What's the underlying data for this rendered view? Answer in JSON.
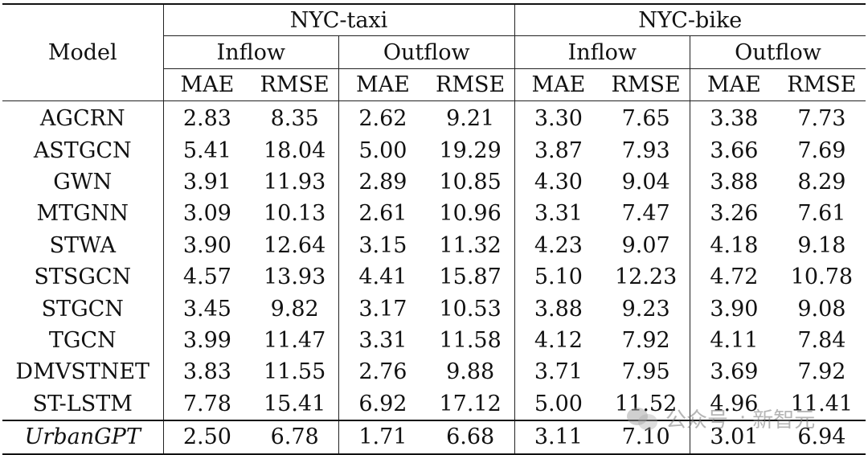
{
  "table": {
    "model_header": "Model",
    "datasets": [
      {
        "name": "NYC-taxi",
        "groups": [
          "Inflow",
          "Outflow"
        ]
      },
      {
        "name": "NYC-bike",
        "groups": [
          "Inflow",
          "Outflow"
        ]
      }
    ],
    "metrics": [
      "MAE",
      "RMSE",
      "MAE",
      "RMSE",
      "MAE",
      "RMSE",
      "MAE",
      "RMSE"
    ],
    "rows": [
      {
        "model": "AGCRN",
        "values": [
          "2.83",
          "8.35",
          "2.62",
          "9.21",
          "3.30",
          "7.65",
          "3.38",
          "7.73"
        ]
      },
      {
        "model": "ASTGCN",
        "values": [
          "5.41",
          "18.04",
          "5.00",
          "19.29",
          "3.87",
          "7.93",
          "3.66",
          "7.69"
        ]
      },
      {
        "model": "GWN",
        "values": [
          "3.91",
          "11.93",
          "2.89",
          "10.85",
          "4.30",
          "9.04",
          "3.88",
          "8.29"
        ]
      },
      {
        "model": "MTGNN",
        "values": [
          "3.09",
          "10.13",
          "2.61",
          "10.96",
          "3.31",
          "7.47",
          "3.26",
          "7.61"
        ]
      },
      {
        "model": "STWA",
        "values": [
          "3.90",
          "12.64",
          "3.15",
          "11.32",
          "4.23",
          "9.07",
          "4.18",
          "9.18"
        ]
      },
      {
        "model": "STSGCN",
        "values": [
          "4.57",
          "13.93",
          "4.41",
          "15.87",
          "5.10",
          "12.23",
          "4.72",
          "10.78"
        ]
      },
      {
        "model": "STGCN",
        "values": [
          "3.45",
          "9.82",
          "3.17",
          "10.53",
          "3.88",
          "9.23",
          "3.90",
          "9.08"
        ]
      },
      {
        "model": "TGCN",
        "values": [
          "3.99",
          "11.47",
          "3.31",
          "11.58",
          "4.12",
          "7.92",
          "4.11",
          "7.84"
        ]
      },
      {
        "model": "DMVSTNET",
        "values": [
          "3.83",
          "11.55",
          "2.76",
          "9.88",
          "3.71",
          "7.95",
          "3.69",
          "7.92"
        ]
      },
      {
        "model": "ST-LSTM",
        "values": [
          "7.78",
          "15.41",
          "6.92",
          "17.12",
          "5.00",
          "11.52",
          "4.96",
          "11.41"
        ]
      }
    ],
    "ours": {
      "model": "UrbanGPT",
      "values": [
        "2.50",
        "6.78",
        "1.71",
        "6.68",
        "3.11",
        "7.10",
        "3.01",
        "6.94"
      ]
    }
  },
  "watermark": {
    "text_left": "公众号",
    "separator": "·",
    "text_right": "新智元",
    "icon": "wechat-icon"
  }
}
